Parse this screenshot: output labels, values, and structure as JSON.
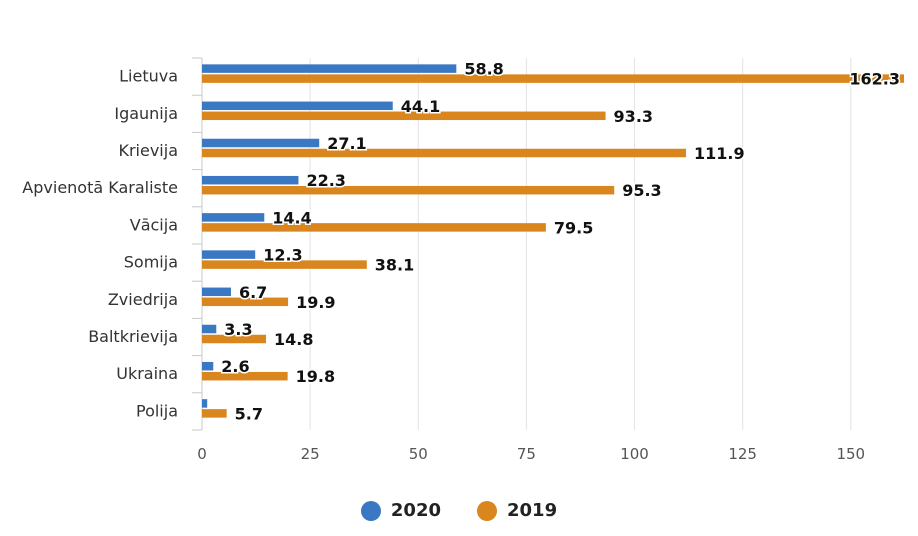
{
  "chart_data": {
    "type": "bar",
    "orientation": "horizontal",
    "categories": [
      "Lietuva",
      "Igaunija",
      "Krievija",
      "Apvienotā Karaliste",
      "Vācija",
      "Somija",
      "Zviedrija",
      "Baltkrievija",
      "Ukraina",
      "Polija"
    ],
    "series": [
      {
        "name": "2020",
        "color": "#3a78c3",
        "values": [
          58.8,
          44.1,
          27.1,
          22.3,
          14.4,
          12.3,
          6.7,
          3.3,
          2.6,
          1.2
        ],
        "labels": [
          "58.8",
          "44.1",
          "27.1",
          "22.3",
          "14.4",
          "12.3",
          "6.7",
          "3.3",
          "2.6",
          ""
        ]
      },
      {
        "name": "2019",
        "color": "#d9861f",
        "values": [
          162.3,
          93.3,
          111.9,
          95.3,
          79.5,
          38.1,
          19.9,
          14.8,
          19.8,
          5.7
        ],
        "labels": [
          "162.3",
          "93.3",
          "111.9",
          "95.3",
          "79.5",
          "38.1",
          "19.9",
          "14.8",
          "19.8",
          "5.7"
        ]
      }
    ],
    "x_ticks": [
      "0",
      "25",
      "50",
      "75",
      "100",
      "125",
      "150"
    ],
    "xlim": [
      0,
      162.3
    ],
    "grid": true,
    "legend_position": "bottom-center"
  }
}
